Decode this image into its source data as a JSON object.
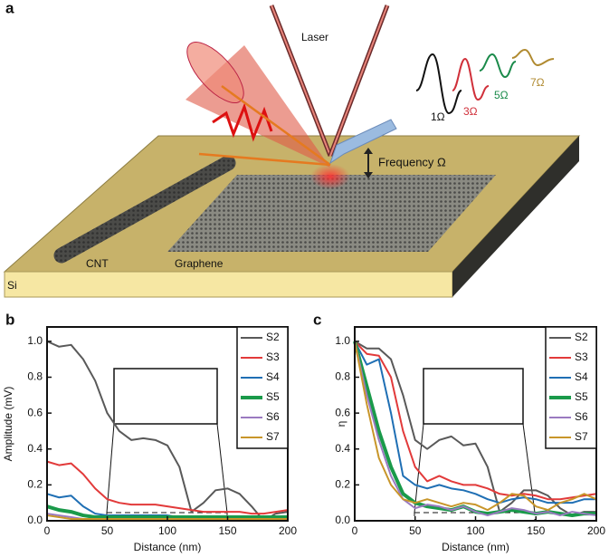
{
  "panel_a": {
    "label": "a",
    "laser": "Laser",
    "waves": [
      "1Ω",
      "3Ω",
      "5Ω",
      "7Ω"
    ],
    "frequency": "Frequency Ω",
    "cnt": "CNT",
    "graphene": "Graphene",
    "substrate": "Si"
  },
  "chart_data": [
    {
      "type": "line",
      "panel": "b",
      "ylabel": "Amplitude (mV)",
      "xlabel": "Distance (nm)",
      "x": [
        0,
        10,
        20,
        30,
        40,
        50,
        60,
        70,
        80,
        90,
        100,
        110,
        120,
        130,
        140,
        150,
        160,
        170,
        180,
        190,
        200
      ],
      "xlim": [
        0,
        200
      ],
      "xticks": [
        0,
        50,
        100,
        150,
        200
      ],
      "ylim": [
        0,
        1.08
      ],
      "yticks": [
        {
          "value": 0,
          "label": "0.0"
        },
        0.2,
        0.4,
        0.6,
        0.8,
        {
          "value": 1,
          "label": "1.0"
        }
      ],
      "legend": "upper right",
      "series": [
        {
          "name": "S2",
          "color": "#595959",
          "linewidth": 2,
          "values": [
            1.0,
            0.97,
            0.98,
            0.9,
            0.78,
            0.6,
            0.5,
            0.45,
            0.46,
            0.45,
            0.42,
            0.3,
            0.05,
            0.1,
            0.17,
            0.18,
            0.15,
            0.08,
            0.0,
            0.04,
            0.05
          ]
        },
        {
          "name": "S3",
          "color": "#e23a3a",
          "linewidth": 2,
          "values": [
            0.33,
            0.31,
            0.32,
            0.26,
            0.18,
            0.12,
            0.1,
            0.09,
            0.09,
            0.09,
            0.08,
            0.07,
            0.06,
            0.05,
            0.05,
            0.05,
            0.05,
            0.04,
            0.04,
            0.05,
            0.06
          ]
        },
        {
          "name": "S4",
          "color": "#1f6fb4",
          "linewidth": 2,
          "values": [
            0.15,
            0.13,
            0.14,
            0.08,
            0.04,
            0.03,
            0.03,
            0.03,
            0.03,
            0.03,
            0.03,
            0.02,
            0.02,
            0.02,
            0.02,
            0.02,
            0.02,
            0.02,
            0.02,
            0.02,
            0.02
          ]
        },
        {
          "name": "S5",
          "color": "#1a9a4a",
          "linewidth": 4,
          "values": [
            0.08,
            0.06,
            0.05,
            0.03,
            0.02,
            0.02,
            0.02,
            0.02,
            0.02,
            0.02,
            0.02,
            0.02,
            0.02,
            0.02,
            0.02,
            0.02,
            0.02,
            0.02,
            0.02,
            0.02,
            0.02
          ]
        },
        {
          "name": "S6",
          "color": "#9a7ac0",
          "linewidth": 2,
          "values": [
            0.04,
            0.03,
            0.02,
            0.01,
            0.01,
            0.01,
            0.01,
            0.01,
            0.01,
            0.01,
            0.01,
            0.01,
            0.01,
            0.01,
            0.01,
            0.01,
            0.01,
            0.01,
            0.01,
            0.01,
            0.01
          ]
        },
        {
          "name": "S7",
          "color": "#c8962a",
          "linewidth": 2,
          "values": [
            0.03,
            0.02,
            0.01,
            0.01,
            0.01,
            0.01,
            0.01,
            0.01,
            0.01,
            0.01,
            0.01,
            0.01,
            0.01,
            0.01,
            0.01,
            0.01,
            0.01,
            0.01,
            0.01,
            0.01,
            0.01
          ]
        }
      ]
    },
    {
      "type": "line",
      "panel": "c",
      "ylabel": "η",
      "xlabel": "Distance (nm)",
      "x": [
        0,
        10,
        20,
        30,
        40,
        50,
        60,
        70,
        80,
        90,
        100,
        110,
        120,
        130,
        140,
        150,
        160,
        170,
        180,
        190,
        200
      ],
      "xlim": [
        0,
        200
      ],
      "xticks": [
        0,
        50,
        100,
        150,
        200
      ],
      "ylim": [
        0,
        1.08
      ],
      "yticks": [
        {
          "value": 0,
          "label": "0.0"
        },
        0.2,
        0.4,
        0.6,
        0.8,
        {
          "value": 1,
          "label": "1.0"
        }
      ],
      "legend": "upper right",
      "series": [
        {
          "name": "S2",
          "color": "#595959",
          "linewidth": 2,
          "values": [
            1.0,
            0.96,
            0.96,
            0.9,
            0.7,
            0.45,
            0.4,
            0.45,
            0.47,
            0.42,
            0.43,
            0.3,
            0.05,
            0.1,
            0.17,
            0.17,
            0.14,
            0.07,
            0.03,
            0.05,
            0.05
          ]
        },
        {
          "name": "S3",
          "color": "#e23a3a",
          "linewidth": 2,
          "values": [
            1.0,
            0.93,
            0.92,
            0.8,
            0.5,
            0.3,
            0.22,
            0.25,
            0.22,
            0.2,
            0.2,
            0.18,
            0.15,
            0.14,
            0.15,
            0.14,
            0.12,
            0.12,
            0.13,
            0.14,
            0.15
          ]
        },
        {
          "name": "S4",
          "color": "#1f6fb4",
          "linewidth": 2,
          "values": [
            1.0,
            0.87,
            0.9,
            0.6,
            0.25,
            0.2,
            0.18,
            0.2,
            0.18,
            0.17,
            0.15,
            0.12,
            0.1,
            0.12,
            0.13,
            0.12,
            0.1,
            0.1,
            0.1,
            0.12,
            0.12
          ]
        },
        {
          "name": "S5",
          "color": "#1a9a4a",
          "linewidth": 4,
          "values": [
            1.0,
            0.75,
            0.5,
            0.3,
            0.15,
            0.1,
            0.08,
            0.07,
            0.06,
            0.08,
            0.05,
            0.04,
            0.05,
            0.06,
            0.05,
            0.04,
            0.05,
            0.04,
            0.03,
            0.04,
            0.04
          ]
        },
        {
          "name": "S6",
          "color": "#9a7ac0",
          "linewidth": 2,
          "values": [
            1.0,
            0.7,
            0.45,
            0.25,
            0.12,
            0.07,
            0.09,
            0.08,
            0.06,
            0.08,
            0.05,
            0.03,
            0.05,
            0.07,
            0.06,
            0.04,
            0.05,
            0.03,
            0.05,
            0.04,
            0.03
          ]
        },
        {
          "name": "S7",
          "color": "#c8962a",
          "linewidth": 2,
          "values": [
            1.0,
            0.65,
            0.35,
            0.2,
            0.12,
            0.1,
            0.12,
            0.1,
            0.08,
            0.1,
            0.09,
            0.06,
            0.1,
            0.15,
            0.14,
            0.08,
            0.06,
            0.1,
            0.12,
            0.15,
            0.12
          ]
        }
      ]
    }
  ]
}
